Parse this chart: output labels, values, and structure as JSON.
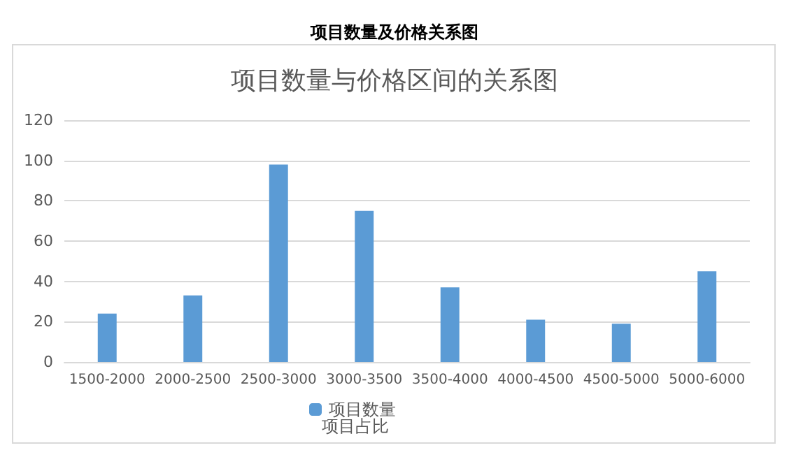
{
  "chart_data": {
    "type": "bar",
    "title": "项目数量及价格关系图",
    "subtitle": "项目数量与价格区间的关系图",
    "categories": [
      "1500-2000",
      "2000-2500",
      "2500-3000",
      "3000-3500",
      "3500-4000",
      "4000-4500",
      "4500-5000",
      "5000-6000"
    ],
    "series": [
      {
        "name": "项目数量",
        "color": "#5b9bd5",
        "values": [
          24,
          33,
          98,
          75,
          37,
          21,
          19,
          45
        ]
      }
    ],
    "ylim": [
      0,
      120
    ],
    "yticks": [
      0,
      20,
      40,
      60,
      80,
      100,
      120
    ],
    "grid": "y",
    "legend": "bottom",
    "annotations": [
      "项目占比"
    ]
  }
}
